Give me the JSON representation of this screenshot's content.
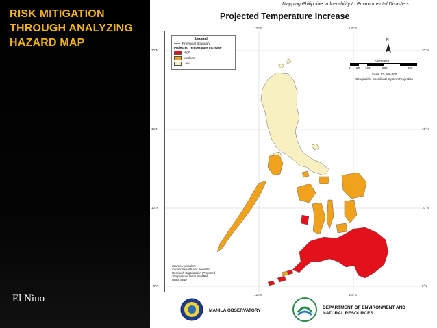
{
  "slide": {
    "title_lines": [
      "RISK MITIGATION",
      "THROUGH ANALYZING",
      "HAZARD MAP"
    ],
    "caption": "El Nino"
  },
  "map": {
    "source_line": "Mapping Philippine Vulnerability to Environmental Disasters",
    "title": "Projected Temperature Increase",
    "longitudes": [
      "120°E",
      "125°E"
    ],
    "latitudes": [
      "20°N",
      "15°N",
      "10°N",
      "5°N"
    ],
    "legend": {
      "title": "Legend",
      "boundary_label": "Provincial Boundary",
      "subtitle": "Projected Temperature Increase",
      "classes": [
        {
          "label": "High",
          "color": "#e2111b"
        },
        {
          "label": "Medium",
          "color": "#f0a21c"
        },
        {
          "label": "Low",
          "color": "#f8f0c0"
        }
      ]
    },
    "north_label": "N",
    "scale": {
      "unit_label": "Kilometers",
      "ticks": [
        "0",
        "50",
        "100",
        "200",
        "300"
      ],
      "ratio": "Scale 1:5,500,000",
      "projection": "Geographic Coordinate System Projection"
    },
    "source_note": "Source: Australia's Commonwealth and Scientific Research Organization (Projected Temperature Data) NAMRIA (Base Map)"
  },
  "footer": {
    "org_left": "MANILA OBSERVATORY",
    "org_right_lines": [
      "DEPARTMENT OF ENVIRONMENT AND",
      "NATURAL RESOURCES"
    ]
  }
}
